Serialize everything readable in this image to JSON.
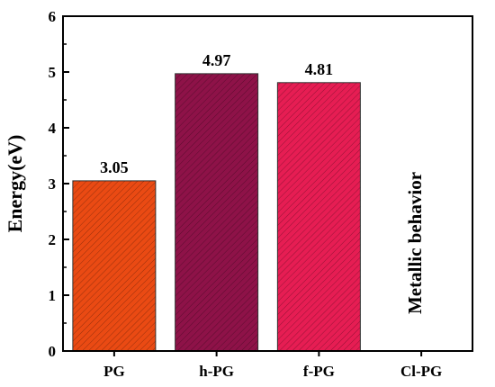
{
  "chart_data": {
    "type": "bar",
    "categories": [
      "PG",
      "h-PG",
      "f-PG",
      "Cl-PG"
    ],
    "values": [
      3.05,
      4.97,
      4.81,
      null
    ],
    "value_labels": [
      "3.05",
      "4.97",
      "4.81",
      ""
    ],
    "bar_colors": [
      "#ea4a13",
      "#8e1248",
      "#e61d53",
      null
    ],
    "ylabel": "Energy(eV)",
    "xlabel": "",
    "ylim": [
      0,
      6
    ],
    "yticks": [
      "0",
      "1",
      "2",
      "3",
      "4",
      "5",
      "6"
    ],
    "annotation": "Metallic behavior",
    "grid": false,
    "legend": false
  }
}
